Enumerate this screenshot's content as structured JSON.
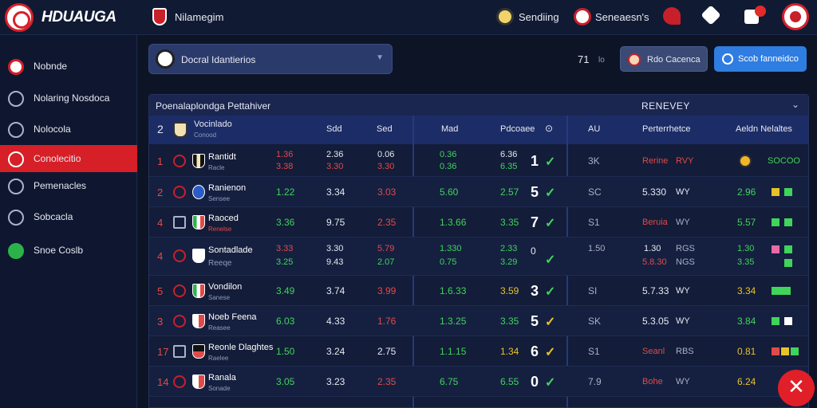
{
  "header": {
    "brand": "HDUAUGA",
    "nav_title": "Nilamegim",
    "items": [
      {
        "label": "Sendiing"
      },
      {
        "label": "Seneaesn's"
      }
    ]
  },
  "sidebar": {
    "items": [
      {
        "label": "Nobnde",
        "icon": "flag-icon"
      },
      {
        "label": "Nolaring Nosdoca",
        "icon": "player-icon"
      },
      {
        "label": "Nolocola",
        "icon": "whistle-icon"
      },
      {
        "label": "Conolecitio",
        "icon": "soccer-ball-icon",
        "active": true
      },
      {
        "label": "Pemenacles",
        "icon": "stadium-icon"
      },
      {
        "label": "Sobcacla",
        "icon": "search-icon"
      },
      {
        "label": "Snoe Coslb",
        "icon": "ball-icon"
      }
    ]
  },
  "toolbar": {
    "search_text": "Docral Idantierios",
    "count_value": "71",
    "count_sub": "lo",
    "gray_button": "Rdo Cacenca",
    "blue_button": "Scob fanneidco"
  },
  "table": {
    "title": "Poenalaplondga Pettahiver",
    "right_title": "RENEVEY",
    "headers": {
      "rank": "2",
      "team": "Vocinlado",
      "team_sub": "Conood",
      "c1": "Sdd",
      "c2": "Sed",
      "c3": "Mad",
      "c4": "Pdcoaee",
      "c5": "AU",
      "c6": "Perterrhetce",
      "c7": "Aeldn Nelaltes"
    },
    "rows": [
      {
        "rank": "1",
        "name": "Rantidt",
        "sub": "Racle",
        "a": [
          "1.36",
          "3.38"
        ],
        "b": [
          "2.36",
          "3.30"
        ],
        "c": [
          "0.06",
          "3.30"
        ],
        "d": [
          "0.36",
          "0.36"
        ],
        "e": [
          "6.36",
          "6.35"
        ],
        "big": "1",
        "f": "3K",
        "g": "Rerine",
        "g2": "RVY",
        "h": "SOCOO",
        "colors": {
          "a": "red",
          "b": "white",
          "c": "red",
          "d": "green",
          "e": "green"
        }
      },
      {
        "rank": "2",
        "name": "Ranienon",
        "sub": "Sensee",
        "a": [
          "1.22"
        ],
        "b": [
          "3.34"
        ],
        "c": [
          "3.03"
        ],
        "d": [
          "5.60"
        ],
        "e": [
          "2.57"
        ],
        "big": "5",
        "f": "SC",
        "g": "5.330",
        "g2": "WY",
        "h": "2.96"
      },
      {
        "rank": "4",
        "name": "Raoced",
        "sub": "Renelse",
        "a": [
          "3.36"
        ],
        "b": [
          "9.75"
        ],
        "c": [
          "2.35"
        ],
        "d": [
          "1.3.66"
        ],
        "e": [
          "3.35"
        ],
        "big": "7",
        "f": "S1",
        "g": "Beruia",
        "g2": "WY",
        "h": "5.57"
      },
      {
        "rank": "4",
        "name": "Sontadlade",
        "sub": "Reeqe",
        "a": [
          "3.33",
          "3.25"
        ],
        "b": [
          "3.30",
          "9.43"
        ],
        "c": [
          "5.79",
          "2.07"
        ],
        "d": [
          "1.330",
          "0.75"
        ],
        "e": [
          "2.33",
          "3.29"
        ],
        "big": "0",
        "f": "1.50",
        "g": "1.30",
        "g2": "RGS",
        "h": "1.30",
        "h2": "3.35",
        "g3": "5.8.30",
        "g4": "NGS"
      },
      {
        "rank": "5",
        "name": "Vondilon",
        "sub": "Sanese",
        "a": [
          "3.49"
        ],
        "b": [
          "3.74"
        ],
        "c": [
          "3.99"
        ],
        "d": [
          "1.6.33"
        ],
        "e": [
          "3.59"
        ],
        "big": "3",
        "f": "SI",
        "g": "5.7.33",
        "g2": "WY",
        "h": "3.34"
      },
      {
        "rank": "3",
        "name": "Noeb Feena",
        "sub": "Reasee",
        "a": [
          "6.03"
        ],
        "b": [
          "4.33"
        ],
        "c": [
          "1.76"
        ],
        "d": [
          "1.3.25"
        ],
        "e": [
          "3.35"
        ],
        "big": "5",
        "f": "SK",
        "g": "5.3.05",
        "g2": "WY",
        "h": "3.84"
      },
      {
        "rank": "17",
        "name": "Reonle Dlaghtes",
        "sub": "Raelee",
        "a": [
          "1.50"
        ],
        "b": [
          "3.24"
        ],
        "c": [
          "2.75"
        ],
        "d": [
          "1.1.15"
        ],
        "e": [
          "1.34"
        ],
        "big": "6",
        "f": "S1",
        "g": "Seanl",
        "g2": "RBS",
        "h": "0.81"
      },
      {
        "rank": "14",
        "name": "Ranala",
        "sub": "Sonade",
        "a": [
          "3.05"
        ],
        "b": [
          "3.23"
        ],
        "c": [
          "2.35"
        ],
        "d": [
          "6.75"
        ],
        "e": [
          "6.55"
        ],
        "big": "0",
        "f": "7.9",
        "g": "Bohe",
        "g2": "WY",
        "h": "6.24"
      }
    ]
  },
  "colors": {
    "accent_red": "#d61f27",
    "accent_blue": "#2f7de1",
    "positive": "#3fd45a",
    "negative": "#e14a4a"
  }
}
